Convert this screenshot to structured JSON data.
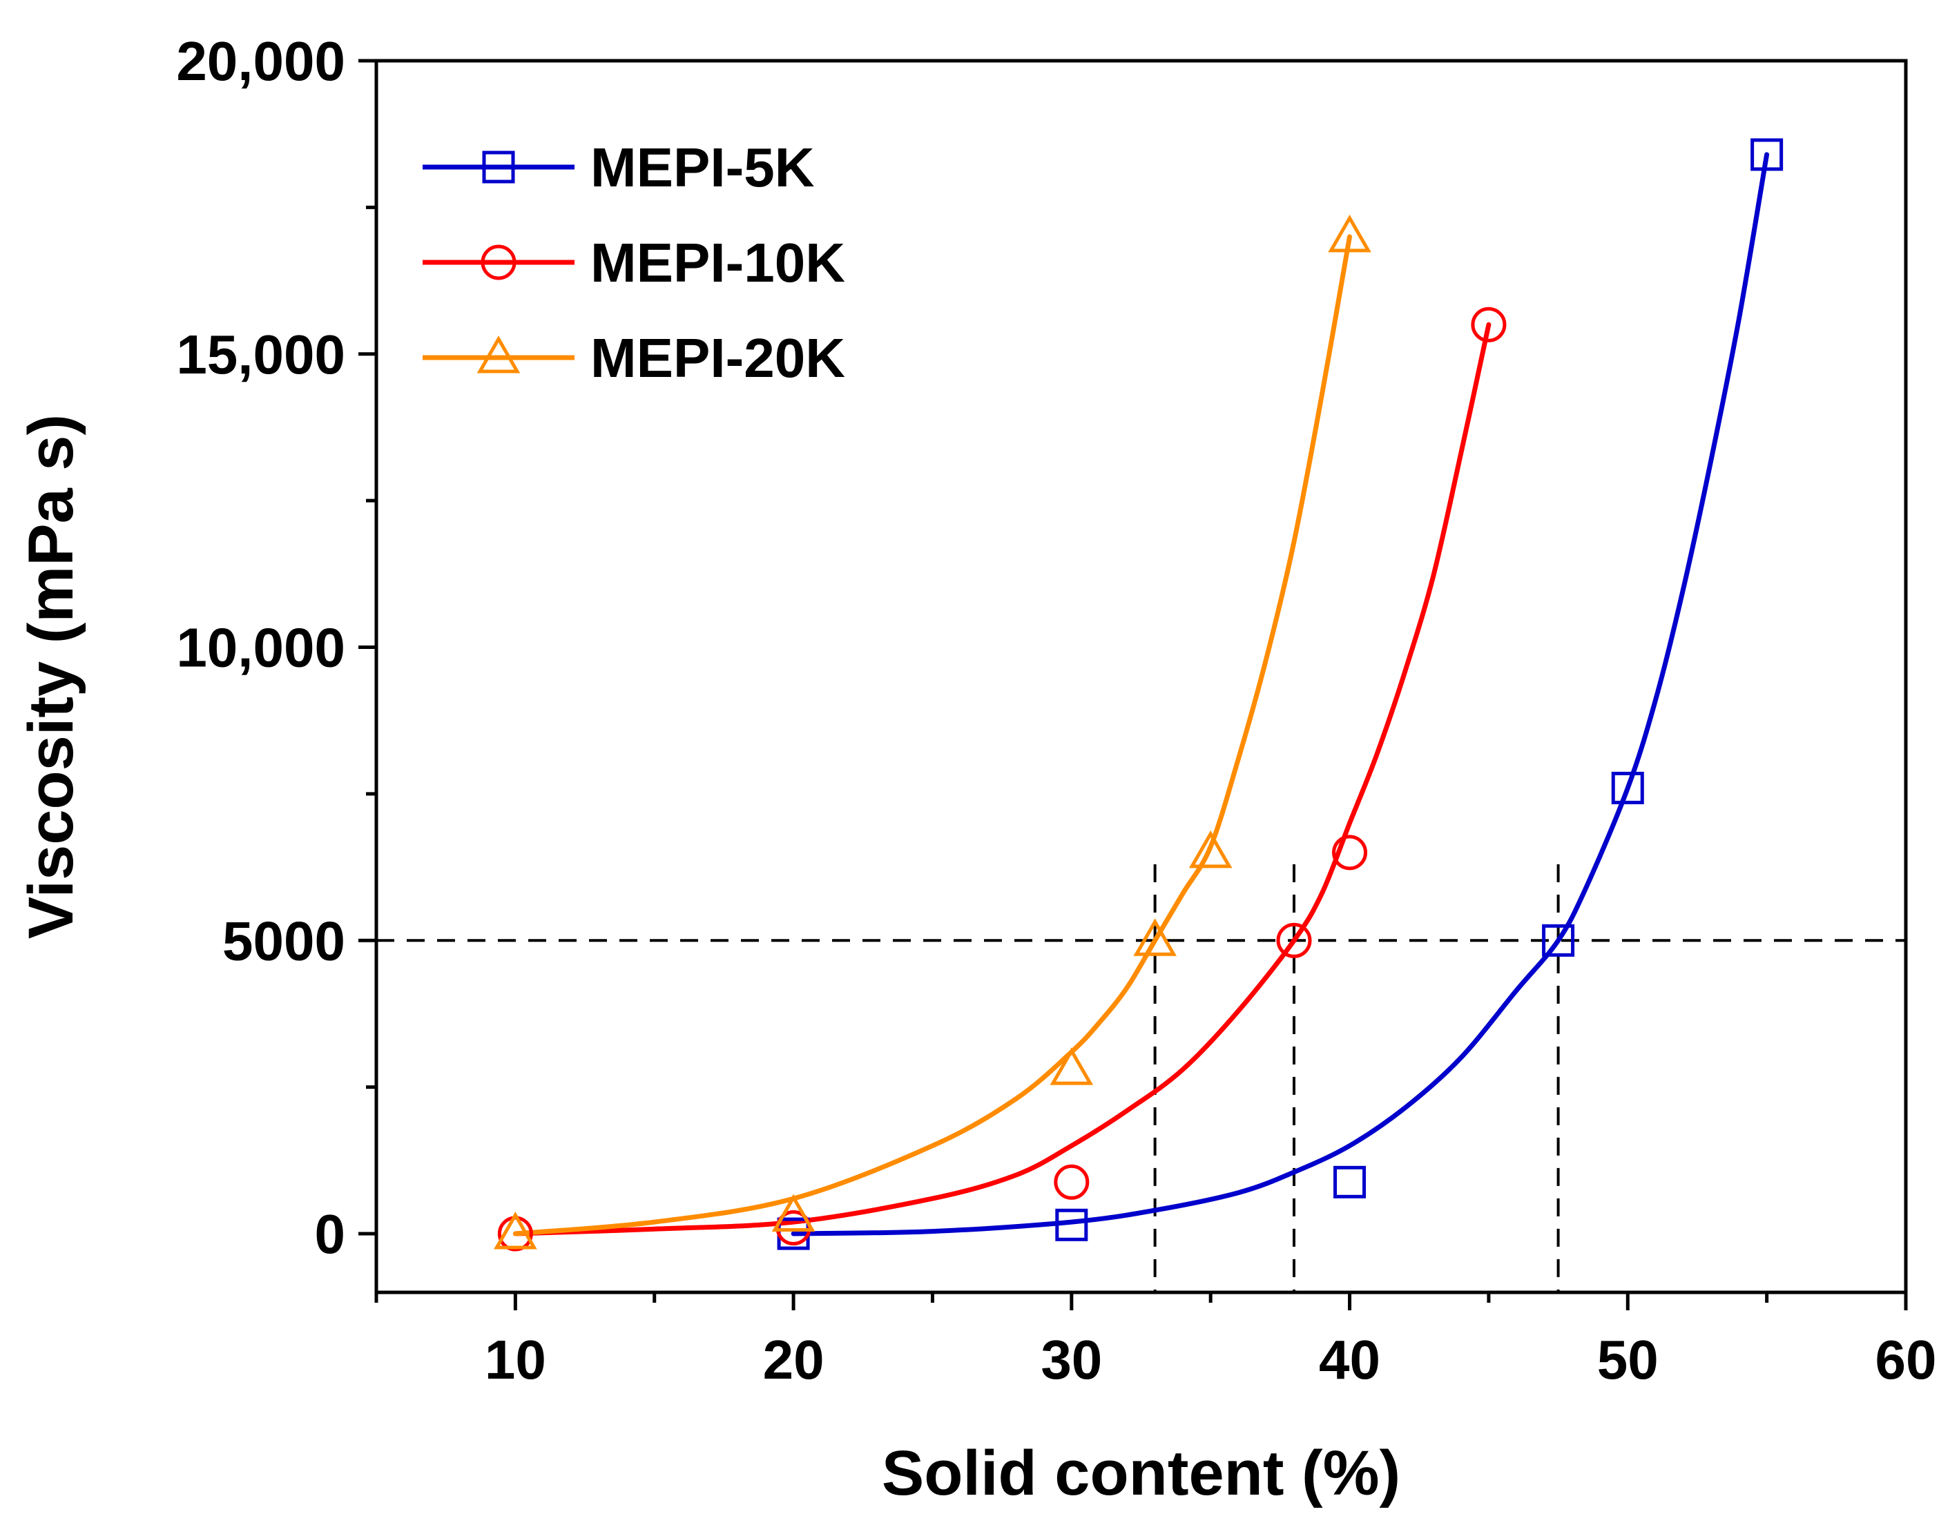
{
  "chart_data": {
    "type": "line",
    "title": "",
    "xlabel": "Solid content (%)",
    "ylabel": "Viscosity (mPa s)",
    "xlim": [
      5,
      60
    ],
    "ylim": [
      -1000,
      20000
    ],
    "xticks": [
      10,
      20,
      30,
      40,
      50,
      60
    ],
    "xtick_labels": [
      "10",
      "20",
      "30",
      "40",
      "50",
      "60"
    ],
    "yticks": [
      0,
      5000,
      10000,
      15000,
      20000
    ],
    "ytick_labels": [
      "0",
      "5000",
      "10,000",
      "15,000",
      "20,000"
    ],
    "legend_position": "top-left",
    "series": [
      {
        "name": "MEPI-5K",
        "color": "#0000cc",
        "marker": "square",
        "points": [
          [
            20,
            0
          ],
          [
            30,
            150
          ],
          [
            40,
            880
          ],
          [
            47.5,
            5000
          ],
          [
            50,
            7600
          ],
          [
            55,
            18400
          ]
        ],
        "fit": [
          [
            20,
            0
          ],
          [
            25,
            40
          ],
          [
            30,
            200
          ],
          [
            33,
            400
          ],
          [
            36,
            700
          ],
          [
            38,
            1050
          ],
          [
            40,
            1500
          ],
          [
            42,
            2150
          ],
          [
            44,
            3000
          ],
          [
            46,
            4150
          ],
          [
            47.5,
            5000
          ],
          [
            48.5,
            5900
          ],
          [
            50,
            7600
          ],
          [
            51,
            9100
          ],
          [
            52,
            11000
          ],
          [
            53,
            13200
          ],
          [
            54,
            15600
          ],
          [
            55,
            18400
          ]
        ]
      },
      {
        "name": "MEPI-10K",
        "color": "#ff0000",
        "marker": "circle",
        "points": [
          [
            10,
            0
          ],
          [
            20,
            100
          ],
          [
            30,
            880
          ],
          [
            38,
            5000
          ],
          [
            40,
            6500
          ],
          [
            45,
            15500
          ]
        ],
        "fit": [
          [
            10,
            0
          ],
          [
            15,
            80
          ],
          [
            20,
            200
          ],
          [
            25,
            600
          ],
          [
            28,
            1000
          ],
          [
            30,
            1500
          ],
          [
            32,
            2100
          ],
          [
            34,
            2800
          ],
          [
            36,
            3800
          ],
          [
            38,
            5000
          ],
          [
            39,
            5800
          ],
          [
            40,
            7000
          ],
          [
            41,
            8200
          ],
          [
            42,
            9600
          ],
          [
            43,
            11200
          ],
          [
            44,
            13300
          ],
          [
            45,
            15500
          ]
        ]
      },
      {
        "name": "MEPI-20K",
        "color": "#ff8c00",
        "marker": "triangle",
        "points": [
          [
            10,
            0
          ],
          [
            20,
            300
          ],
          [
            30,
            2800
          ],
          [
            33,
            5000
          ],
          [
            35,
            6500
          ],
          [
            40,
            17000
          ]
        ],
        "fit": [
          [
            10,
            0
          ],
          [
            15,
            200
          ],
          [
            20,
            600
          ],
          [
            25,
            1500
          ],
          [
            28,
            2300
          ],
          [
            30,
            3100
          ],
          [
            31,
            3600
          ],
          [
            32,
            4200
          ],
          [
            33,
            5000
          ],
          [
            34,
            5800
          ],
          [
            35,
            6600
          ],
          [
            36,
            8100
          ],
          [
            37,
            9800
          ],
          [
            38,
            11800
          ],
          [
            39,
            14300
          ],
          [
            40,
            17000
          ]
        ]
      }
    ],
    "reference_lines": {
      "horizontal_y": 5000,
      "vertical_x": [
        33,
        38,
        47.5
      ],
      "vertical_top_y": 6300
    }
  }
}
